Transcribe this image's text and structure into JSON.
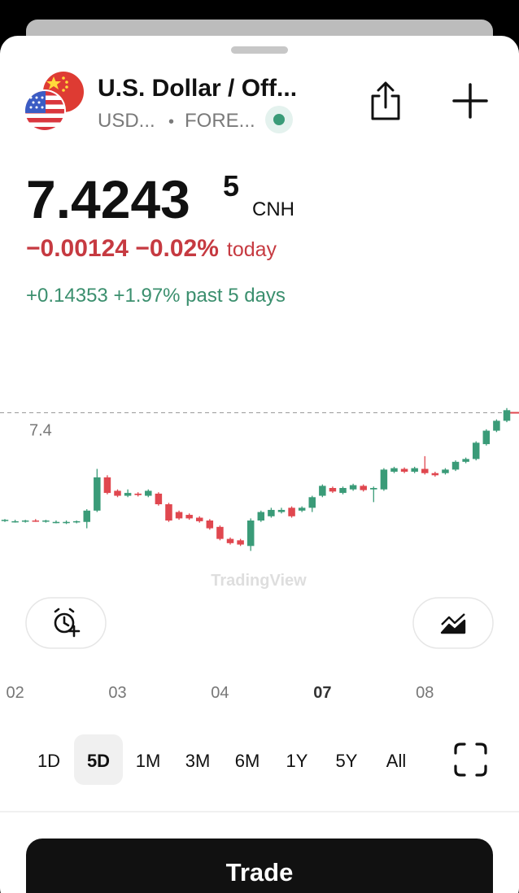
{
  "header": {
    "title": "U.S. Dollar / Off...",
    "symbol": "USD...",
    "separator": "•",
    "exchange": "FORE..."
  },
  "quote": {
    "price": "7.4243",
    "price_fraction": "5",
    "currency": "CNH",
    "change_today": "−0.00124 −0.02%",
    "today_label": "today",
    "change_5d": "+0.14353 +1.97% past 5 days"
  },
  "chart_data": {
    "type": "candlestick",
    "watermark": "TradingView",
    "up_color": "#3a9b78",
    "down_color": "#e0474f",
    "last_price": 7.42435,
    "ylim": [
      7.18,
      7.525
    ],
    "yticks": [
      7.4
    ],
    "xticks": [
      {
        "value": 1,
        "label": "02"
      },
      {
        "value": 11,
        "label": "03"
      },
      {
        "value": 21,
        "label": "04"
      },
      {
        "value": 31,
        "label": "07"
      },
      {
        "value": 41,
        "label": "08"
      }
    ],
    "open": [
      7.272,
      7.271,
      7.271,
      7.272,
      7.271,
      7.27,
      7.269,
      7.27,
      7.27,
      7.286,
      7.333,
      7.314,
      7.307,
      7.31,
      7.307,
      7.31,
      7.295,
      7.284,
      7.28,
      7.276,
      7.272,
      7.263,
      7.246,
      7.244,
      7.236,
      7.272,
      7.278,
      7.284,
      7.29,
      7.286,
      7.29,
      7.307,
      7.318,
      7.311,
      7.316,
      7.321,
      7.316,
      7.316,
      7.341,
      7.345,
      7.341,
      7.345,
      7.339,
      7.339,
      7.344,
      7.355,
      7.359,
      7.38,
      7.399,
      7.413
    ],
    "high": [
      7.274,
      7.273,
      7.273,
      7.274,
      7.273,
      7.272,
      7.272,
      7.272,
      7.288,
      7.345,
      7.336,
      7.316,
      7.316,
      7.312,
      7.316,
      7.312,
      7.297,
      7.286,
      7.282,
      7.278,
      7.274,
      7.265,
      7.248,
      7.246,
      7.275,
      7.286,
      7.29,
      7.29,
      7.292,
      7.292,
      7.307,
      7.323,
      7.32,
      7.32,
      7.324,
      7.323,
      7.32,
      7.346,
      7.348,
      7.347,
      7.348,
      7.363,
      7.341,
      7.346,
      7.357,
      7.361,
      7.384,
      7.401,
      7.415,
      7.431
    ],
    "low": [
      7.27,
      7.269,
      7.269,
      7.27,
      7.269,
      7.268,
      7.267,
      7.268,
      7.261,
      7.284,
      7.309,
      7.305,
      7.305,
      7.306,
      7.305,
      7.293,
      7.27,
      7.273,
      7.273,
      7.269,
      7.259,
      7.244,
      7.238,
      7.236,
      7.229,
      7.27,
      7.276,
      7.282,
      7.276,
      7.284,
      7.284,
      7.305,
      7.311,
      7.309,
      7.314,
      7.313,
      7.298,
      7.314,
      7.339,
      7.339,
      7.339,
      7.337,
      7.334,
      7.337,
      7.342,
      7.353,
      7.357,
      7.378,
      7.397,
      7.411
    ],
    "close": [
      7.273,
      7.271,
      7.272,
      7.271,
      7.272,
      7.27,
      7.27,
      7.271,
      7.286,
      7.333,
      7.311,
      7.307,
      7.311,
      7.308,
      7.314,
      7.295,
      7.272,
      7.275,
      7.275,
      7.271,
      7.261,
      7.246,
      7.24,
      7.238,
      7.272,
      7.284,
      7.287,
      7.287,
      7.278,
      7.29,
      7.305,
      7.321,
      7.313,
      7.318,
      7.322,
      7.315,
      7.318,
      7.344,
      7.346,
      7.341,
      7.346,
      7.339,
      7.336,
      7.344,
      7.355,
      7.359,
      7.382,
      7.399,
      7.413,
      7.428
    ]
  },
  "controls": {
    "ranges": [
      "1D",
      "5D",
      "1M",
      "3M",
      "6M",
      "1Y",
      "5Y",
      "All"
    ],
    "selected_range": 1,
    "trade_button": "Trade"
  }
}
